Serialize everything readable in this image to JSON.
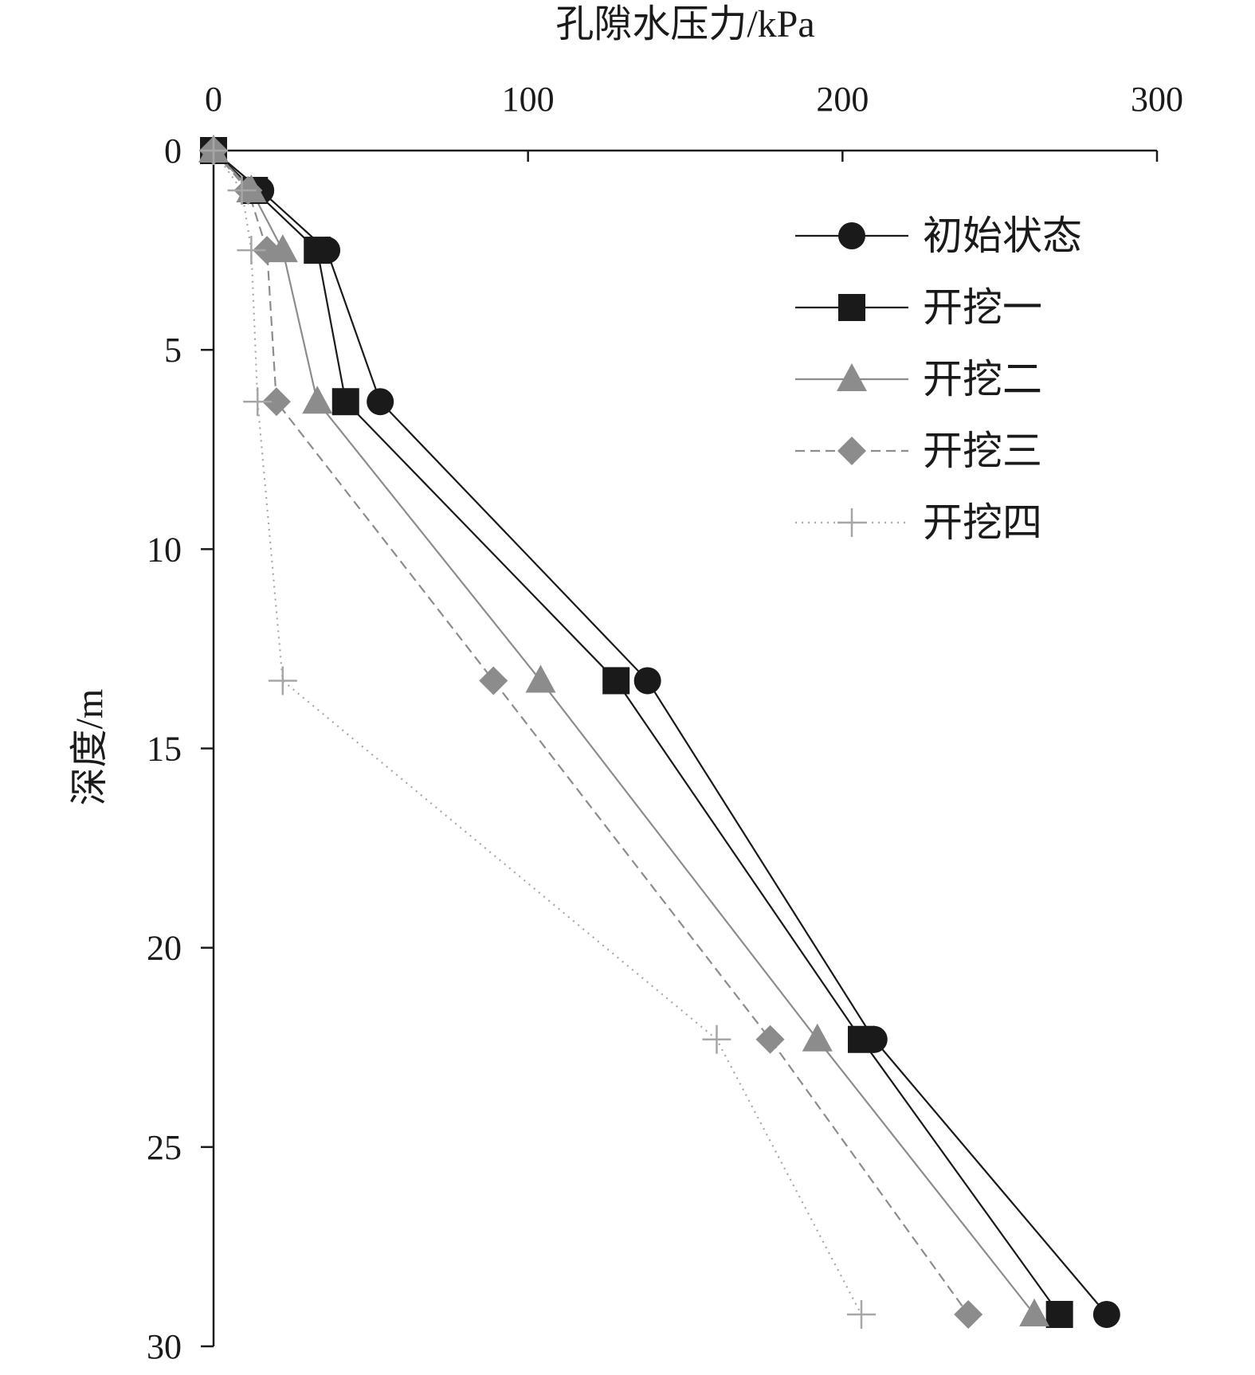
{
  "chart_data": {
    "type": "line",
    "xlabel": "孔隙水压力/kPa",
    "ylabel": "深度/m",
    "xlim": [
      0,
      300
    ],
    "ylim": [
      0,
      30
    ],
    "x_axis_position": "top",
    "y_axis_inverted": true,
    "grid": false,
    "legend_position": "top-right",
    "x_ticks": [
      "0",
      "100",
      "200",
      "300"
    ],
    "y_ticks": [
      "0",
      "5",
      "10",
      "15",
      "20",
      "25",
      "30"
    ],
    "series": [
      {
        "name": "初始状态",
        "marker": "circle",
        "line": "solid",
        "color": "#1a1a1a",
        "points": [
          [
            0,
            0
          ],
          [
            15,
            1
          ],
          [
            36,
            2.5
          ],
          [
            53,
            6.3
          ],
          [
            138,
            13.3
          ],
          [
            210,
            22.3
          ],
          [
            284,
            29.2
          ]
        ]
      },
      {
        "name": "开挖一",
        "marker": "square",
        "line": "solid",
        "color": "#1a1a1a",
        "points": [
          [
            0,
            0
          ],
          [
            13,
            1
          ],
          [
            33,
            2.5
          ],
          [
            42,
            6.3
          ],
          [
            128,
            13.3
          ],
          [
            206,
            22.3
          ],
          [
            269,
            29.2
          ]
        ]
      },
      {
        "name": "开挖二",
        "marker": "triangle",
        "line": "solid",
        "color": "#8c8c8c",
        "points": [
          [
            0,
            0
          ],
          [
            12,
            1
          ],
          [
            22,
            2.5
          ],
          [
            33,
            6.3
          ],
          [
            104,
            13.3
          ],
          [
            192,
            22.3
          ],
          [
            261,
            29.2
          ]
        ]
      },
      {
        "name": "开挖三",
        "marker": "diamond",
        "line": "dashed",
        "color": "#8c8c8c",
        "points": [
          [
            0,
            0
          ],
          [
            11,
            1
          ],
          [
            17,
            2.5
          ],
          [
            20,
            6.3
          ],
          [
            89,
            13.3
          ],
          [
            177,
            22.3
          ],
          [
            240,
            29.2
          ]
        ]
      },
      {
        "name": "开挖四",
        "marker": "plus",
        "line": "dotted",
        "color": "#a6a6a6",
        "points": [
          [
            0,
            0
          ],
          [
            9,
            1
          ],
          [
            12,
            2.5
          ],
          [
            14,
            6.3
          ],
          [
            22,
            13.3
          ],
          [
            160,
            22.3
          ],
          [
            206,
            29.2
          ]
        ]
      }
    ]
  }
}
